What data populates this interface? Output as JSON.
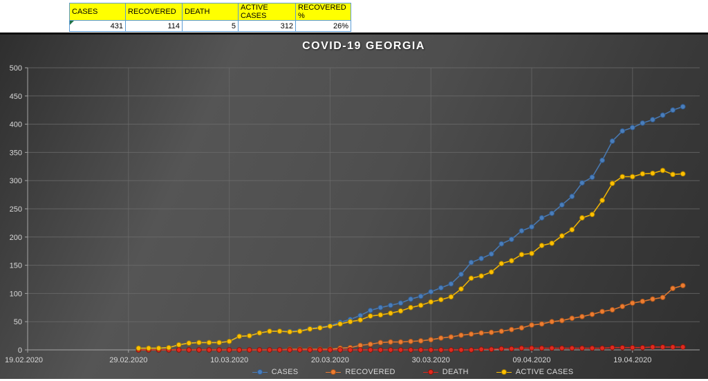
{
  "table": {
    "headers": [
      "CASES",
      "RECOVERED",
      "DEATH",
      "ACTIVE CASES",
      "RECOVERED %"
    ],
    "values": [
      "431",
      "114",
      "5",
      "312",
      "26%"
    ]
  },
  "chart_data": {
    "type": "line",
    "title": "COVID-19 GEORGIA",
    "x_tick_labels": [
      "19.02.2020",
      "29.02.2020",
      "10.03.2020",
      "20.03.2020",
      "30.03.2020",
      "09.04.2020",
      "19.04.2020"
    ],
    "y_ticks": [
      0,
      50,
      100,
      150,
      200,
      250,
      300,
      350,
      400,
      450,
      500
    ],
    "ylim": [
      0,
      500
    ],
    "grid": true,
    "legend_position": "bottom",
    "days_per_tick": 10,
    "start_day_offset": 11,
    "background": "#424242",
    "series": [
      {
        "name": "CASES",
        "color": "#4a7ebb",
        "edge": "#2f5a8f",
        "values": [
          3,
          3,
          3,
          4,
          9,
          12,
          13,
          13,
          13,
          15,
          24,
          25,
          30,
          33,
          33,
          33,
          34,
          38,
          40,
          43,
          49,
          54,
          61,
          70,
          75,
          79,
          83,
          90,
          95,
          103,
          110,
          117,
          134,
          155,
          162,
          170,
          188,
          196,
          211,
          218,
          234,
          242,
          257,
          272,
          296,
          306,
          336,
          370,
          388,
          394,
          402,
          408,
          416,
          425,
          431
        ]
      },
      {
        "name": "RECOVERED",
        "color": "#ed7d31",
        "edge": "#a8531a",
        "values": [
          0,
          0,
          0,
          0,
          0,
          0,
          0,
          0,
          0,
          0,
          0,
          0,
          0,
          0,
          0,
          1,
          1,
          1,
          1,
          1,
          3,
          4,
          8,
          10,
          13,
          14,
          14,
          15,
          16,
          18,
          21,
          23,
          26,
          28,
          30,
          31,
          33,
          36,
          39,
          44,
          46,
          50,
          52,
          56,
          59,
          63,
          68,
          71,
          77,
          83,
          86,
          90,
          93,
          109,
          114
        ]
      },
      {
        "name": "DEATH",
        "color": "#e02b20",
        "edge": "#8b1208",
        "values": [
          0,
          0,
          0,
          0,
          0,
          0,
          0,
          0,
          0,
          0,
          0,
          0,
          0,
          0,
          0,
          0,
          0,
          0,
          0,
          0,
          0,
          0,
          0,
          0,
          0,
          0,
          0,
          0,
          0,
          0,
          0,
          0,
          0,
          0,
          1,
          1,
          2,
          2,
          3,
          3,
          3,
          3,
          3,
          3,
          3,
          3,
          3,
          4,
          4,
          4,
          4,
          5,
          5,
          5,
          5
        ]
      },
      {
        "name": "ACTIVE CASES",
        "color": "#ffc000",
        "edge": "#a37b00",
        "values": [
          3,
          3,
          3,
          4,
          9,
          12,
          13,
          13,
          13,
          15,
          24,
          25,
          30,
          33,
          33,
          32,
          33,
          37,
          39,
          42,
          46,
          50,
          53,
          60,
          62,
          65,
          69,
          75,
          79,
          85,
          89,
          94,
          108,
          127,
          131,
          138,
          153,
          158,
          169,
          171,
          185,
          189,
          202,
          213,
          234,
          240,
          265,
          295,
          307,
          307,
          312,
          313,
          318,
          311,
          312
        ]
      }
    ]
  }
}
